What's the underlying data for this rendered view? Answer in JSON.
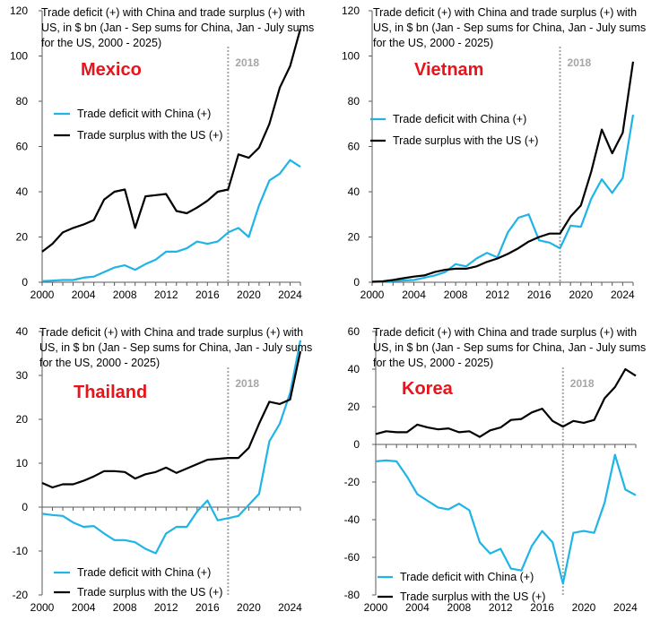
{
  "colors": {
    "china": "#1fb4e6",
    "us": "#000000",
    "country": "#e8141b",
    "marker": "#a6a6a6"
  },
  "legend": {
    "china": "Trade deficit with China (+)",
    "us": "Trade surplus with the US (+)"
  },
  "chart_data": [
    {
      "type": "line",
      "country": "Mexico",
      "title_lines": [
        "Trade deficit (+) with China and trade surplus (+) with",
        "US, in $ bn  (Jan - Sep sums for China, Jan - July sums",
        "for the US, 2000 - 2025)"
      ],
      "marker_label": "2018",
      "x": [
        2000,
        2001,
        2002,
        2003,
        2004,
        2005,
        2006,
        2007,
        2008,
        2009,
        2010,
        2011,
        2012,
        2013,
        2014,
        2015,
        2016,
        2017,
        2018,
        2019,
        2020,
        2021,
        2022,
        2023,
        2024,
        2025
      ],
      "xlim": [
        2000,
        2025
      ],
      "xticks": [
        2000,
        2004,
        2008,
        2012,
        2016,
        2020,
        2024
      ],
      "ylim": [
        0,
        120
      ],
      "yticks": [
        0,
        20,
        40,
        60,
        80,
        100,
        120
      ],
      "marker_x": 2018,
      "series": [
        {
          "name": "Trade deficit with China (+)",
          "values": [
            0.5,
            0.7,
            1,
            1,
            2,
            2.5,
            4.5,
            6.5,
            7.5,
            5.5,
            8,
            10,
            13.5,
            13.5,
            15,
            18,
            17,
            18,
            22,
            24,
            20,
            34,
            45,
            48,
            54,
            51
          ]
        },
        {
          "name": "Trade surplus with the US (+)",
          "values": [
            13.5,
            17,
            22,
            24,
            25.5,
            27.5,
            36.5,
            40,
            41,
            24,
            38,
            38.5,
            39,
            31.5,
            30.5,
            33,
            36,
            40,
            41,
            56.5,
            55,
            59.5,
            70,
            86,
            95.5,
            112
          ]
        }
      ]
    },
    {
      "type": "line",
      "country": "Vietnam",
      "title_lines": [
        "Trade deficit (+) with China and trade surplus (+) with",
        "US, in $ bn  (Jan - Sep sums for China, Jan - July sums",
        "for the US, 2000 - 2025)"
      ],
      "marker_label": "2018",
      "x": [
        2000,
        2001,
        2002,
        2003,
        2004,
        2005,
        2006,
        2007,
        2008,
        2009,
        2010,
        2011,
        2012,
        2013,
        2014,
        2015,
        2016,
        2017,
        2018,
        2019,
        2020,
        2021,
        2022,
        2023,
        2024,
        2025
      ],
      "xlim": [
        2000,
        2025
      ],
      "xticks": [
        2000,
        2004,
        2008,
        2012,
        2016,
        2020,
        2024
      ],
      "ylim": [
        0,
        120
      ],
      "yticks": [
        0,
        20,
        40,
        60,
        80,
        100,
        120
      ],
      "marker_x": 2018,
      "series": [
        {
          "name": "Trade deficit with China (+)",
          "values": [
            0.2,
            0.3,
            0.5,
            0.8,
            1,
            2,
            3,
            4.5,
            8,
            7,
            10.5,
            13,
            11,
            22,
            28.5,
            30,
            18.5,
            17.5,
            15,
            25,
            24.5,
            37,
            45.5,
            39.5,
            46,
            74
          ]
        },
        {
          "name": "Trade surplus with the US (+)",
          "values": [
            0.2,
            0.4,
            1,
            1.8,
            2.5,
            3,
            4.5,
            5.5,
            6,
            6,
            7,
            9,
            10.5,
            12.5,
            15,
            18,
            20,
            21.5,
            21.5,
            29,
            34,
            49,
            67.5,
            57,
            66,
            97.5
          ]
        }
      ]
    },
    {
      "type": "line",
      "country": "Thailand",
      "title_lines": [
        "Trade deficit (+) with China and trade surplus (+) with",
        "US, in $ bn  (Jan - Sep sums for China, Jan - July sums",
        "for the US, 2000 - 2025)"
      ],
      "marker_label": "2018",
      "x": [
        2000,
        2001,
        2002,
        2003,
        2004,
        2005,
        2006,
        2007,
        2008,
        2009,
        2010,
        2011,
        2012,
        2013,
        2014,
        2015,
        2016,
        2017,
        2018,
        2019,
        2020,
        2021,
        2022,
        2023,
        2024,
        2025
      ],
      "xlim": [
        2000,
        2025
      ],
      "xticks": [
        2000,
        2004,
        2008,
        2012,
        2016,
        2020,
        2024
      ],
      "ylim": [
        -20,
        40
      ],
      "yticks": [
        -20,
        -10,
        0,
        10,
        20,
        30,
        40
      ],
      "marker_x": 2018,
      "series": [
        {
          "name": "Trade deficit with China (+)",
          "values": [
            -1.5,
            -1.8,
            -2,
            -3.5,
            -4.5,
            -4.3,
            -6,
            -7.5,
            -7.5,
            -8,
            -9.5,
            -10.5,
            -6,
            -4.5,
            -4.5,
            -1,
            1.5,
            -3,
            -2.5,
            -2,
            0.5,
            3,
            15,
            19,
            26,
            38
          ]
        },
        {
          "name": "Trade surplus with the US (+)",
          "values": [
            5.5,
            4.5,
            5.2,
            5.2,
            6,
            7,
            8.2,
            8.2,
            8,
            6.5,
            7.5,
            8,
            9,
            7.8,
            8.8,
            9.8,
            10.8,
            11,
            11.2,
            11.2,
            13.5,
            19,
            24,
            23.5,
            24.5,
            35.5
          ]
        }
      ]
    },
    {
      "type": "line",
      "country": "Korea",
      "title_lines": [
        "Trade deficit (+) with China and trade surplus (+) with",
        "US, in $ bn  (Jan - Sep sums for China, Jan - July sums",
        "for the US, 2000 - 2025)"
      ],
      "marker_label": "2018",
      "x": [
        2000,
        2001,
        2002,
        2003,
        2004,
        2005,
        2006,
        2007,
        2008,
        2009,
        2010,
        2011,
        2012,
        2013,
        2014,
        2015,
        2016,
        2017,
        2018,
        2019,
        2020,
        2021,
        2022,
        2023,
        2024,
        2025
      ],
      "xlim": [
        2000,
        2025
      ],
      "xticks": [
        2000,
        2004,
        2008,
        2012,
        2016,
        2020,
        2024
      ],
      "ylim": [
        -80,
        60
      ],
      "yticks": [
        -80,
        -60,
        -40,
        -20,
        0,
        20,
        40,
        60
      ],
      "marker_x": 2018,
      "series": [
        {
          "name": "Trade deficit with China (+)",
          "values": [
            -9,
            -8.5,
            -9,
            -17,
            -26.5,
            -30,
            -33.5,
            -34.5,
            -31.5,
            -35,
            -52,
            -58,
            -55.5,
            -66,
            -67,
            -54,
            -46,
            -52,
            -74,
            -47,
            -46,
            -47,
            -31,
            -5.5,
            -24,
            -27
          ]
        },
        {
          "name": "Trade surplus with the US (+)",
          "values": [
            5.5,
            7,
            6.5,
            6.5,
            10.5,
            9,
            8,
            8.5,
            6.5,
            7,
            4,
            7.5,
            9,
            13,
            13.5,
            17,
            19,
            12.5,
            9.5,
            12.5,
            11.5,
            13,
            24.5,
            30.5,
            40,
            36.5
          ]
        }
      ]
    }
  ]
}
